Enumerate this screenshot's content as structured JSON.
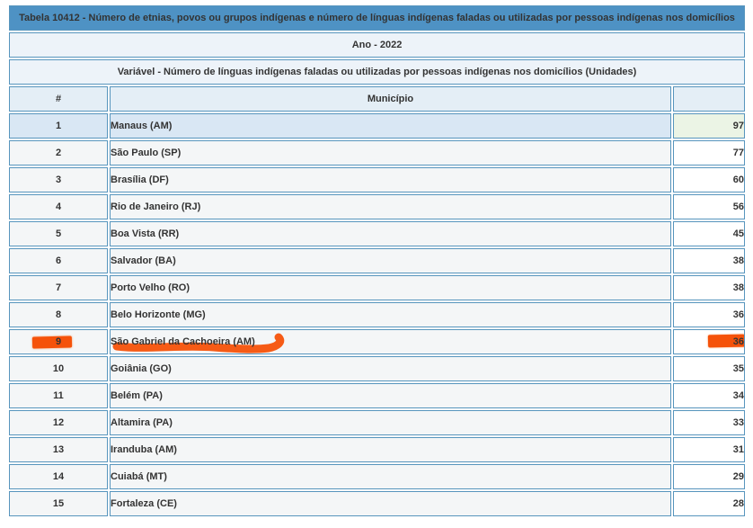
{
  "table": {
    "title": "Tabela 10412 - Número de etnias, povos ou grupos indígenas e número de línguas indígenas faladas ou utilizadas por pessoas indígenas nos domicílios",
    "year_label": "Ano - 2022",
    "variable_label": "Variável - Número de línguas indígenas faladas ou utilizadas por pessoas indígenas nos domicílios (Unidades)",
    "columns": {
      "rank": "#",
      "municipality": "Município",
      "value": ""
    },
    "rows": [
      {
        "rank": "1",
        "municipality": "Manaus (AM)",
        "value": "97",
        "highlighted": true,
        "marked": false
      },
      {
        "rank": "2",
        "municipality": "São Paulo (SP)",
        "value": "77",
        "highlighted": false,
        "marked": false
      },
      {
        "rank": "3",
        "municipality": "Brasília (DF)",
        "value": "60",
        "highlighted": false,
        "marked": false
      },
      {
        "rank": "4",
        "municipality": "Rio de Janeiro (RJ)",
        "value": "56",
        "highlighted": false,
        "marked": false
      },
      {
        "rank": "5",
        "municipality": "Boa Vista (RR)",
        "value": "45",
        "highlighted": false,
        "marked": false
      },
      {
        "rank": "6",
        "municipality": "Salvador (BA)",
        "value": "38",
        "highlighted": false,
        "marked": false
      },
      {
        "rank": "7",
        "municipality": "Porto Velho (RO)",
        "value": "38",
        "highlighted": false,
        "marked": false
      },
      {
        "rank": "8",
        "municipality": "Belo Horizonte (MG)",
        "value": "36",
        "highlighted": false,
        "marked": false
      },
      {
        "rank": "9",
        "municipality": "São Gabriel da Cachoeira (AM)",
        "value": "36",
        "highlighted": false,
        "marked": true
      },
      {
        "rank": "10",
        "municipality": "Goiânia (GO)",
        "value": "35",
        "highlighted": false,
        "marked": false
      },
      {
        "rank": "11",
        "municipality": "Belém (PA)",
        "value": "34",
        "highlighted": false,
        "marked": false
      },
      {
        "rank": "12",
        "municipality": "Altamira (PA)",
        "value": "33",
        "highlighted": false,
        "marked": false
      },
      {
        "rank": "13",
        "municipality": "Iranduba (AM)",
        "value": "31",
        "highlighted": false,
        "marked": false
      },
      {
        "rank": "14",
        "municipality": "Cuiabá (MT)",
        "value": "29",
        "highlighted": false,
        "marked": false
      },
      {
        "rank": "15",
        "municipality": "Fortaleza (CE)",
        "value": "28",
        "highlighted": false,
        "marked": false
      }
    ]
  },
  "annotations": {
    "marked_row_rank": "9",
    "marker_color": "#f5520a",
    "marks": [
      "rank",
      "municipality",
      "value"
    ]
  },
  "colors": {
    "title_bar_bg": "#4e92c4",
    "title_bar_text": "#ffffff",
    "subheader_bg": "#edf3f9",
    "column_header_bg": "#e4eef6",
    "border": "#5795bd",
    "row_bg": "#f4f6f7",
    "value_cell_bg": "#ffffff",
    "highlight_row_bg": "#d9e7f4",
    "highlight_value_bg": "#ebf4e5",
    "text": "#333333",
    "marker": "#f5520a"
  }
}
